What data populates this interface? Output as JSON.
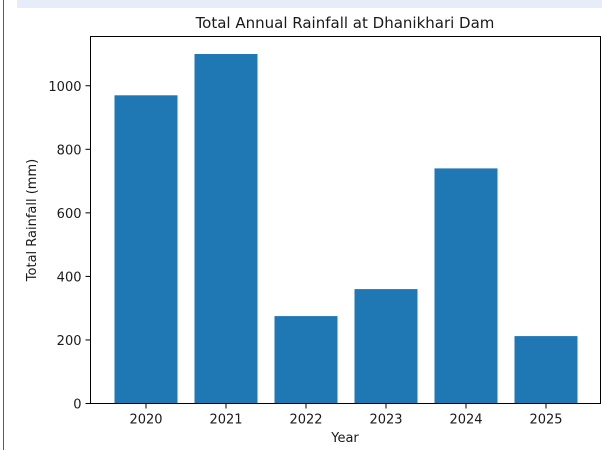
{
  "chart_data": {
    "type": "bar",
    "title": "Total Annual Rainfall at Dhanikhari Dam",
    "xlabel": "Year",
    "ylabel": "Total Rainfall (mm)",
    "categories": [
      "2020",
      "2021",
      "2022",
      "2023",
      "2024",
      "2025"
    ],
    "values": [
      970,
      1100,
      275,
      360,
      740,
      212
    ],
    "ylim": [
      0,
      1155
    ],
    "yticks": [
      0,
      200,
      400,
      600,
      800,
      1000
    ],
    "bar_color": "#1f77b4",
    "grid": false,
    "legend": "none"
  }
}
